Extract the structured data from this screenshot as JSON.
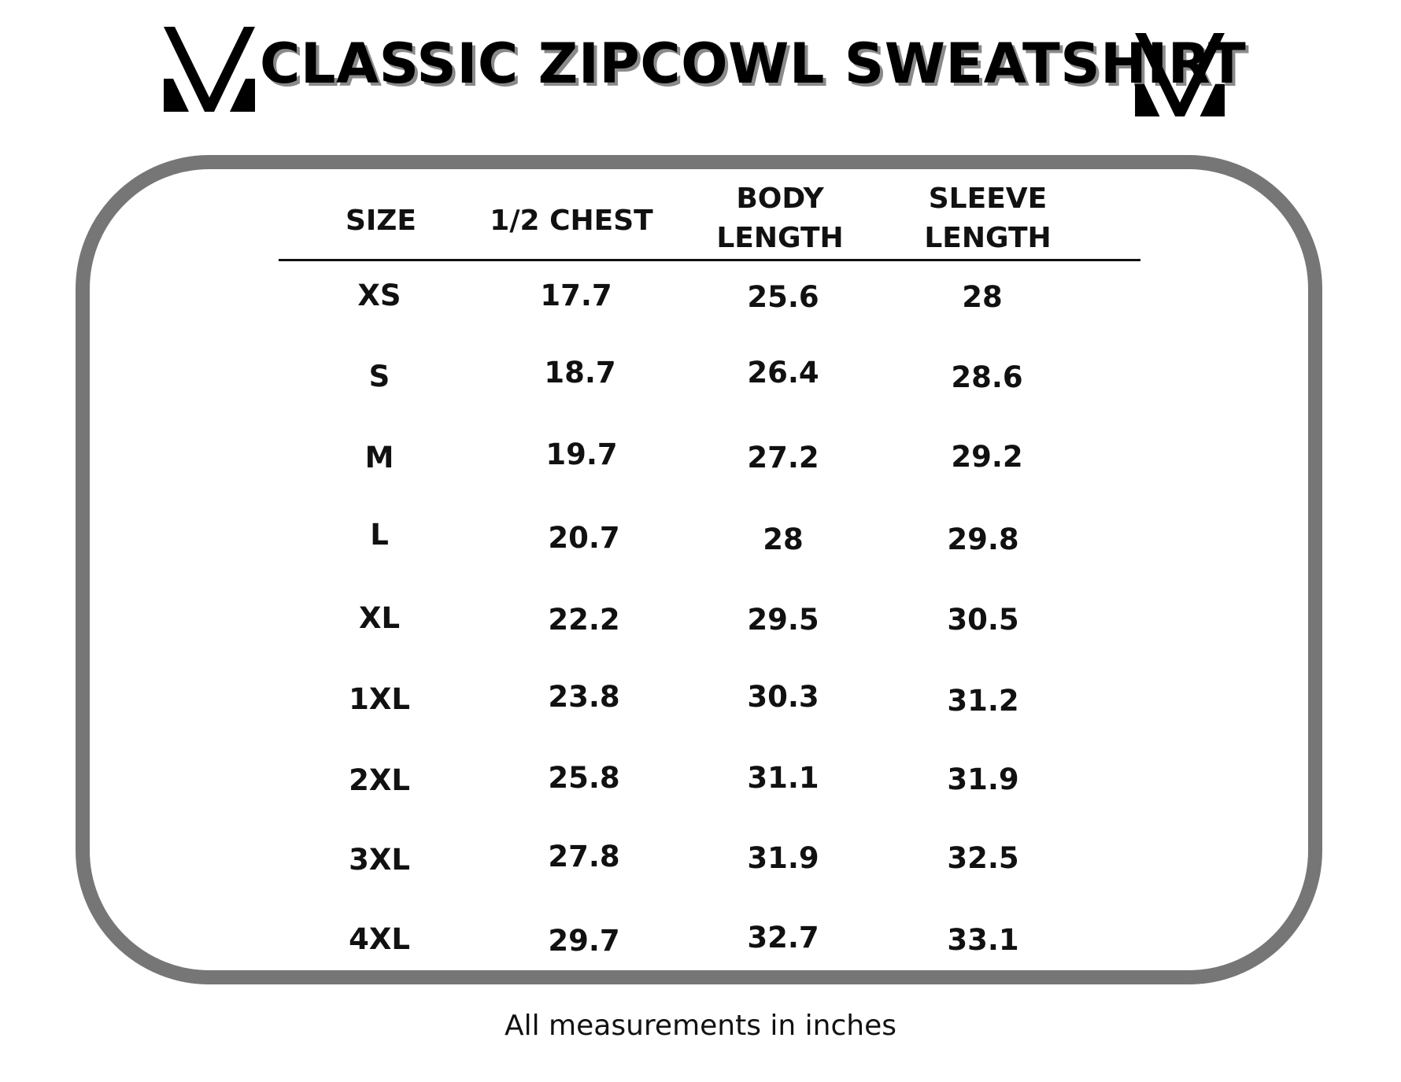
{
  "title": "CLASSIC ZIPCOWL SWEATSHIRT",
  "logo_icon": "v-chevron-logo-icon",
  "colors": {
    "frame": "#767676",
    "text": "#111111",
    "title_shadow": "#8a8a8a"
  },
  "table": {
    "headers": [
      {
        "line1": "SIZE",
        "line2": ""
      },
      {
        "line1": "1/2 CHEST",
        "line2": ""
      },
      {
        "line1": "BODY",
        "line2": "LENGTH"
      },
      {
        "line1": "SLEEVE",
        "line2": "LENGTH"
      }
    ],
    "rows": [
      {
        "size": "XS",
        "chest": "17.7",
        "body": "25.6",
        "sleeve": "28"
      },
      {
        "size": "S",
        "chest": "18.7",
        "body": "26.4",
        "sleeve": "28.6"
      },
      {
        "size": "M",
        "chest": "19.7",
        "body": "27.2",
        "sleeve": "29.2"
      },
      {
        "size": "L",
        "chest": "20.7",
        "body": "28",
        "sleeve": "29.8"
      },
      {
        "size": "XL",
        "chest": "22.2",
        "body": "29.5",
        "sleeve": "30.5"
      },
      {
        "size": "1XL",
        "chest": "23.8",
        "body": "30.3",
        "sleeve": "31.2"
      },
      {
        "size": "2XL",
        "chest": "25.8",
        "body": "31.1",
        "sleeve": "31.9"
      },
      {
        "size": "3XL",
        "chest": "27.8",
        "body": "31.9",
        "sleeve": "32.5"
      },
      {
        "size": "4XL",
        "chest": "29.7",
        "body": "32.7",
        "sleeve": "33.1"
      }
    ]
  },
  "footnote": "All measurements in inches"
}
